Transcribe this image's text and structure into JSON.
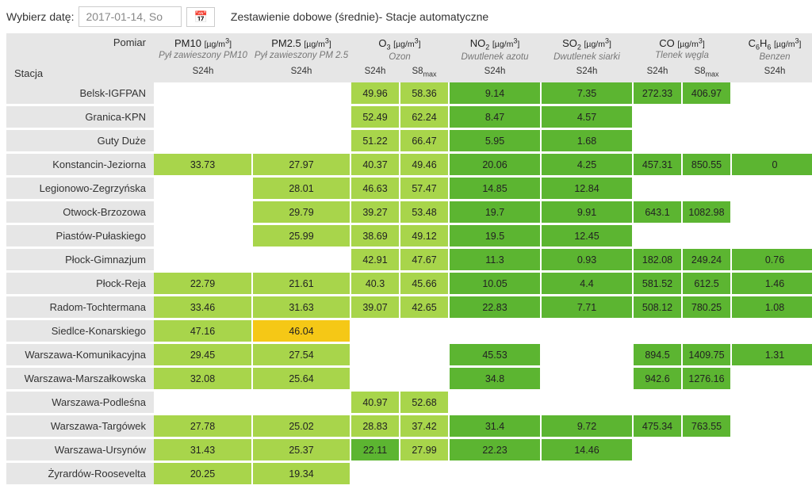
{
  "ui": {
    "dateLabel": "Wybierz datę:",
    "dateValue": "2017-01-14, So",
    "title": "Zestawienie dobowe (średnie)- Stacje automatyczne",
    "cornerTop": "Pomiar",
    "cornerBottom": "Stacja"
  },
  "colors": {
    "lightGreen": "#a8d54b",
    "green": "#5cb531",
    "yellow": "#f5c816",
    "headerGray": "#e6e6e6",
    "empty": "#ffffff"
  },
  "columns": [
    {
      "key": "pm10",
      "title": "PM10",
      "unit": "[µg/m³]",
      "sub": "Pył zawieszony PM10",
      "subcols": [
        "S24h"
      ]
    },
    {
      "key": "pm25",
      "title": "PM2.5",
      "unit": "[µg/m³]",
      "sub": "Pył zawieszony PM 2.5",
      "subcols": [
        "S24h"
      ]
    },
    {
      "key": "o3",
      "title": "O₃",
      "unit": "[µg/m³]",
      "sub": "Ozon",
      "subcols": [
        "S24h",
        "S8max"
      ]
    },
    {
      "key": "no2",
      "title": "NO₂",
      "unit": "[µg/m³]",
      "sub": "Dwutlenek azotu",
      "subcols": [
        "S24h"
      ]
    },
    {
      "key": "so2",
      "title": "SO₂",
      "unit": "[µg/m³]",
      "sub": "Dwutlenek siarki",
      "subcols": [
        "S24h"
      ]
    },
    {
      "key": "co",
      "title": "CO",
      "unit": "[µg/m³]",
      "sub": "Tlenek węgla",
      "subcols": [
        "S24h",
        "S8max"
      ]
    },
    {
      "key": "c6h6",
      "title": "C₆H₆",
      "unit": "[µg/m³]",
      "sub": "Benzen",
      "subcols": [
        "S24h"
      ]
    }
  ],
  "rows": [
    {
      "station": "Belsk-IGFPAN",
      "cells": [
        null,
        null,
        {
          "v": "49.96",
          "c": "lightGreen"
        },
        {
          "v": "58.36",
          "c": "lightGreen"
        },
        {
          "v": "9.14",
          "c": "green"
        },
        {
          "v": "7.35",
          "c": "green"
        },
        {
          "v": "272.33",
          "c": "green"
        },
        {
          "v": "406.97",
          "c": "green"
        },
        null
      ]
    },
    {
      "station": "Granica-KPN",
      "cells": [
        null,
        null,
        {
          "v": "52.49",
          "c": "lightGreen"
        },
        {
          "v": "62.24",
          "c": "lightGreen"
        },
        {
          "v": "8.47",
          "c": "green"
        },
        {
          "v": "4.57",
          "c": "green"
        },
        null,
        null,
        null
      ]
    },
    {
      "station": "Guty Duże",
      "cells": [
        null,
        null,
        {
          "v": "51.22",
          "c": "lightGreen"
        },
        {
          "v": "66.47",
          "c": "lightGreen"
        },
        {
          "v": "5.95",
          "c": "green"
        },
        {
          "v": "1.68",
          "c": "green"
        },
        null,
        null,
        null
      ]
    },
    {
      "station": "Konstancin-Jeziorna",
      "cells": [
        {
          "v": "33.73",
          "c": "lightGreen"
        },
        {
          "v": "27.97",
          "c": "lightGreen"
        },
        {
          "v": "40.37",
          "c": "lightGreen"
        },
        {
          "v": "49.46",
          "c": "lightGreen"
        },
        {
          "v": "20.06",
          "c": "green"
        },
        {
          "v": "4.25",
          "c": "green"
        },
        {
          "v": "457.31",
          "c": "green"
        },
        {
          "v": "850.55",
          "c": "green"
        },
        {
          "v": "0",
          "c": "green"
        }
      ]
    },
    {
      "station": "Legionowo-Zegrzyńska",
      "cells": [
        null,
        {
          "v": "28.01",
          "c": "lightGreen"
        },
        {
          "v": "46.63",
          "c": "lightGreen"
        },
        {
          "v": "57.47",
          "c": "lightGreen"
        },
        {
          "v": "14.85",
          "c": "green"
        },
        {
          "v": "12.84",
          "c": "green"
        },
        null,
        null,
        null
      ]
    },
    {
      "station": "Otwock-Brzozowa",
      "cells": [
        null,
        {
          "v": "29.79",
          "c": "lightGreen"
        },
        {
          "v": "39.27",
          "c": "lightGreen"
        },
        {
          "v": "53.48",
          "c": "lightGreen"
        },
        {
          "v": "19.7",
          "c": "green"
        },
        {
          "v": "9.91",
          "c": "green"
        },
        {
          "v": "643.1",
          "c": "green"
        },
        {
          "v": "1082.98",
          "c": "green"
        },
        null
      ]
    },
    {
      "station": "Piastów-Pułaskiego",
      "cells": [
        null,
        {
          "v": "25.99",
          "c": "lightGreen"
        },
        {
          "v": "38.69",
          "c": "lightGreen"
        },
        {
          "v": "49.12",
          "c": "lightGreen"
        },
        {
          "v": "19.5",
          "c": "green"
        },
        {
          "v": "12.45",
          "c": "green"
        },
        null,
        null,
        null
      ]
    },
    {
      "station": "Płock-Gimnazjum",
      "cells": [
        null,
        null,
        {
          "v": "42.91",
          "c": "lightGreen"
        },
        {
          "v": "47.67",
          "c": "lightGreen"
        },
        {
          "v": "11.3",
          "c": "green"
        },
        {
          "v": "0.93",
          "c": "green"
        },
        {
          "v": "182.08",
          "c": "green"
        },
        {
          "v": "249.24",
          "c": "green"
        },
        {
          "v": "0.76",
          "c": "green"
        }
      ]
    },
    {
      "station": "Płock-Reja",
      "cells": [
        {
          "v": "22.79",
          "c": "lightGreen"
        },
        {
          "v": "21.61",
          "c": "lightGreen"
        },
        {
          "v": "40.3",
          "c": "lightGreen"
        },
        {
          "v": "45.66",
          "c": "lightGreen"
        },
        {
          "v": "10.05",
          "c": "green"
        },
        {
          "v": "4.4",
          "c": "green"
        },
        {
          "v": "581.52",
          "c": "green"
        },
        {
          "v": "612.5",
          "c": "green"
        },
        {
          "v": "1.46",
          "c": "green"
        }
      ]
    },
    {
      "station": "Radom-Tochtermana",
      "cells": [
        {
          "v": "33.46",
          "c": "lightGreen"
        },
        {
          "v": "31.63",
          "c": "lightGreen"
        },
        {
          "v": "39.07",
          "c": "lightGreen"
        },
        {
          "v": "42.65",
          "c": "lightGreen"
        },
        {
          "v": "22.83",
          "c": "green"
        },
        {
          "v": "7.71",
          "c": "green"
        },
        {
          "v": "508.12",
          "c": "green"
        },
        {
          "v": "780.25",
          "c": "green"
        },
        {
          "v": "1.08",
          "c": "green"
        }
      ]
    },
    {
      "station": "Siedlce-Konarskiego",
      "cells": [
        {
          "v": "47.16",
          "c": "lightGreen"
        },
        {
          "v": "46.04",
          "c": "yellow"
        },
        null,
        null,
        null,
        null,
        null,
        null,
        null
      ]
    },
    {
      "station": "Warszawa-Komunikacyjna",
      "cells": [
        {
          "v": "29.45",
          "c": "lightGreen"
        },
        {
          "v": "27.54",
          "c": "lightGreen"
        },
        null,
        null,
        {
          "v": "45.53",
          "c": "green"
        },
        null,
        {
          "v": "894.5",
          "c": "green"
        },
        {
          "v": "1409.75",
          "c": "green"
        },
        {
          "v": "1.31",
          "c": "green"
        }
      ]
    },
    {
      "station": "Warszawa-Marszałkowska",
      "cells": [
        {
          "v": "32.08",
          "c": "lightGreen"
        },
        {
          "v": "25.64",
          "c": "lightGreen"
        },
        null,
        null,
        {
          "v": "34.8",
          "c": "green"
        },
        null,
        {
          "v": "942.6",
          "c": "green"
        },
        {
          "v": "1276.16",
          "c": "green"
        },
        null
      ]
    },
    {
      "station": "Warszawa-Podleśna",
      "cells": [
        null,
        null,
        {
          "v": "40.97",
          "c": "lightGreen"
        },
        {
          "v": "52.68",
          "c": "lightGreen"
        },
        null,
        null,
        null,
        null,
        null
      ]
    },
    {
      "station": "Warszawa-Targówek",
      "cells": [
        {
          "v": "27.78",
          "c": "lightGreen"
        },
        {
          "v": "25.02",
          "c": "lightGreen"
        },
        {
          "v": "28.83",
          "c": "lightGreen"
        },
        {
          "v": "37.42",
          "c": "lightGreen"
        },
        {
          "v": "31.4",
          "c": "green"
        },
        {
          "v": "9.72",
          "c": "green"
        },
        {
          "v": "475.34",
          "c": "green"
        },
        {
          "v": "763.55",
          "c": "green"
        },
        null
      ]
    },
    {
      "station": "Warszawa-Ursynów",
      "cells": [
        {
          "v": "31.43",
          "c": "lightGreen"
        },
        {
          "v": "25.37",
          "c": "lightGreen"
        },
        {
          "v": "22.11",
          "c": "green"
        },
        {
          "v": "27.99",
          "c": "lightGreen"
        },
        {
          "v": "22.23",
          "c": "green"
        },
        {
          "v": "14.46",
          "c": "green"
        },
        null,
        null,
        null
      ]
    },
    {
      "station": "Żyrardów-Roosevelta",
      "cells": [
        {
          "v": "20.25",
          "c": "lightGreen"
        },
        {
          "v": "19.34",
          "c": "lightGreen"
        },
        null,
        null,
        null,
        null,
        null,
        null,
        null
      ]
    }
  ]
}
